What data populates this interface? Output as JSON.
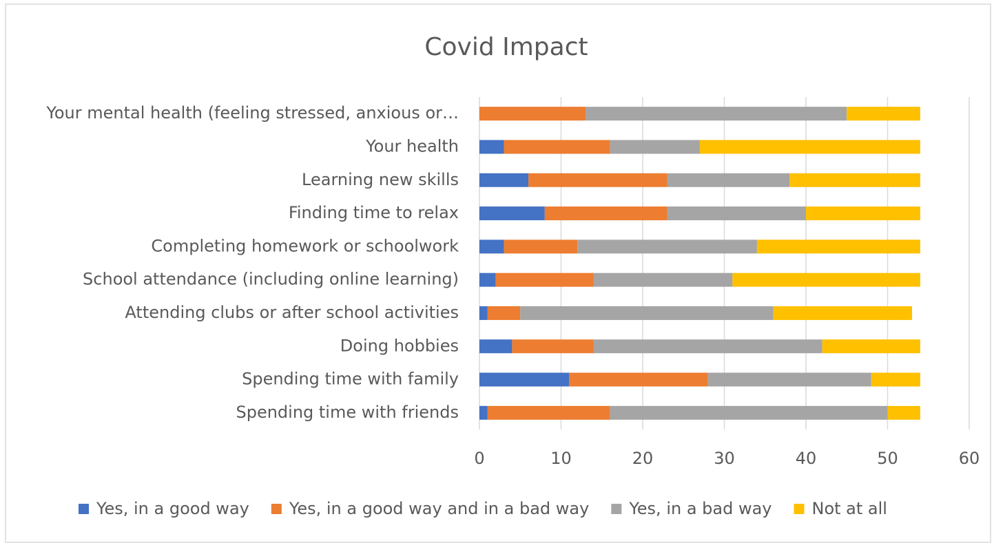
{
  "chart_data": {
    "type": "stacked_bar_horizontal",
    "title": "Covid Impact",
    "categories": [
      "Your mental health (feeling stressed, anxious or…",
      "Your health",
      "Learning new skills",
      "Finding time to relax",
      "Completing homework or schoolwork",
      "School attendance (including online learning)",
      "Attending clubs or after school activities",
      "Doing hobbies",
      "Spending time with family",
      "Spending time with friends"
    ],
    "series": [
      {
        "name": "Yes, in a good way",
        "color": "#4472c4",
        "values": [
          0,
          3,
          6,
          8,
          3,
          2,
          1,
          4,
          11,
          1
        ]
      },
      {
        "name": "Yes, in a good way and in a bad way",
        "color": "#ed7d31",
        "values": [
          13,
          13,
          17,
          15,
          9,
          12,
          4,
          10,
          17,
          15
        ]
      },
      {
        "name": "Yes, in a bad way",
        "color": "#a5a5a5",
        "values": [
          32,
          11,
          15,
          17,
          22,
          17,
          31,
          28,
          20,
          34
        ]
      },
      {
        "name": "Not at all",
        "color": "#ffc000",
        "values": [
          9,
          27,
          16,
          14,
          20,
          23,
          17,
          12,
          6,
          4
        ]
      }
    ],
    "xlim": [
      0,
      60
    ],
    "xticks": [
      0,
      10,
      20,
      30,
      40,
      50,
      60
    ],
    "grid": true,
    "legend": "bottom"
  }
}
